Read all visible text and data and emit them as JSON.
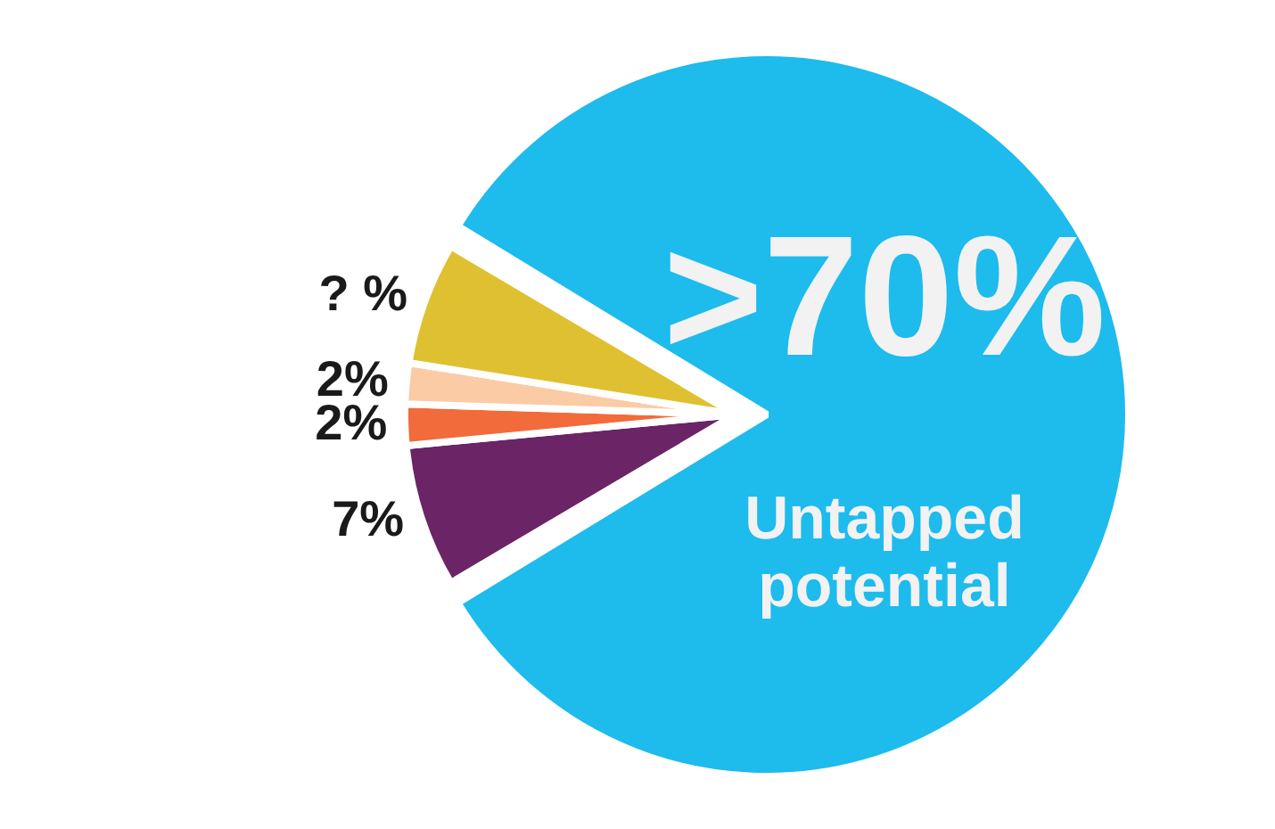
{
  "chart_data": {
    "type": "pie",
    "categories": [
      "Untapped potential",
      null,
      null,
      null,
      null
    ],
    "values": [
      83,
      7,
      2,
      2,
      6
    ],
    "colors": [
      "#1ebbed",
      "#6b2466",
      "#f26b3a",
      "#fbcba6",
      "#dfc030"
    ],
    "value_labels": [
      ">70%",
      "7%",
      "2%",
      "2%",
      "? %"
    ]
  }
}
